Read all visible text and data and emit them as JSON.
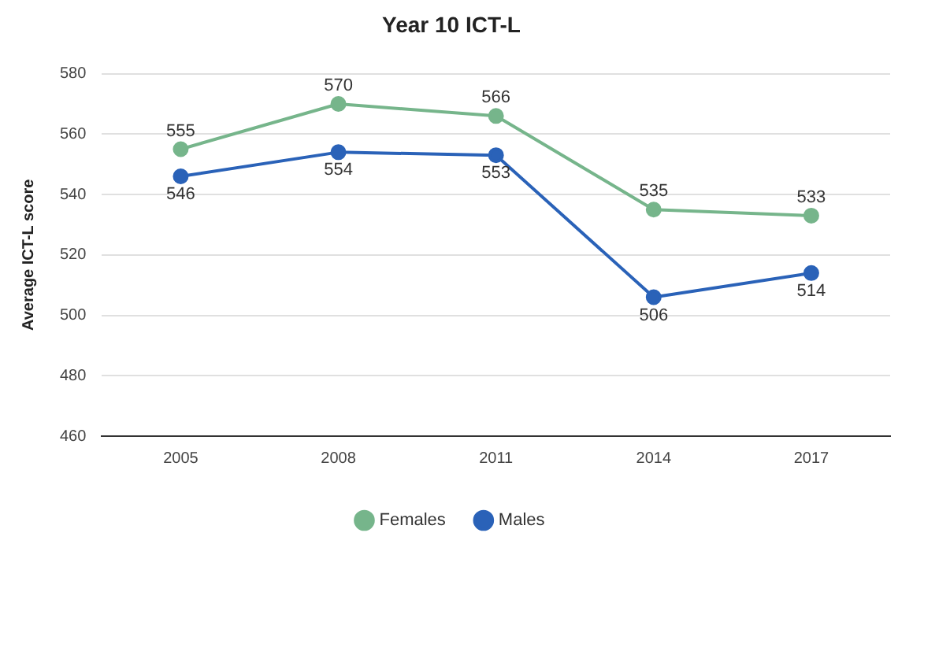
{
  "chart_data": {
    "type": "line",
    "title": "Year 10 ICT-L",
    "ylabel": "Average ICT-L score",
    "categories": [
      "2005",
      "2008",
      "2011",
      "2014",
      "2017"
    ],
    "series": [
      {
        "name": "Females",
        "color": "#76b58b",
        "values": [
          555,
          570,
          566,
          535,
          533
        ]
      },
      {
        "name": "Males",
        "color": "#2a62b8",
        "values": [
          546,
          554,
          553,
          506,
          514
        ]
      }
    ],
    "ylim": [
      460,
      580
    ],
    "yticks": [
      460,
      480,
      500,
      520,
      540,
      560,
      580
    ],
    "grid": "y",
    "legend": "bottom",
    "marker": "circle",
    "line_style": "solid",
    "data_labels": true
  }
}
